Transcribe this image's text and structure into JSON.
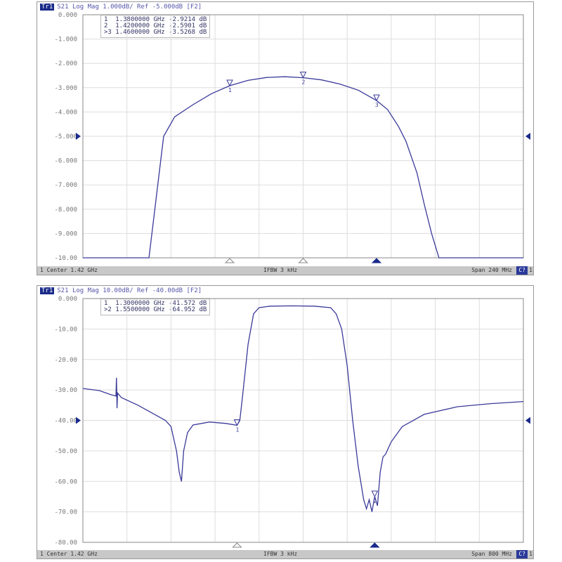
{
  "charts": [
    {
      "trace_label": "Tr1",
      "header": "S21 Log Mag 1.000dB/ Ref -5.000dB [F2]",
      "markers": [
        {
          "id": "1",
          "freq": "1.3800000 GHz",
          "value": "-2.9214 dB"
        },
        {
          "id": "2",
          "freq": "1.4200000 GHz",
          "value": "-2.5901 dB"
        },
        {
          "id": ">3",
          "freq": "1.4600000 GHz",
          "value": "-3.5268 dB"
        }
      ],
      "footer": {
        "left": "1  Center 1.42 GHz",
        "middle": "IFBW 3 kHz",
        "right": "Span 240 MHz",
        "badge": "C?",
        "end": "1"
      }
    },
    {
      "trace_label": "Tr1",
      "header": "S21 Log Mag 10.00dB/ Ref -40.00dB [F2]",
      "markers": [
        {
          "id": "1",
          "freq": "1.3000000 GHz",
          "value": "-41.572 dB"
        },
        {
          "id": ">2",
          "freq": "1.5500000 GHz",
          "value": "-64.952 dB"
        }
      ],
      "footer": {
        "left": "1  Center 1.42 GHz",
        "middle": "IFBW 3 kHz",
        "right": "Span 800 MHz",
        "badge": "C?",
        "end": "1"
      }
    }
  ],
  "chart_data": [
    {
      "type": "line",
      "xlim": [
        1.3,
        1.54
      ],
      "ylim": [
        -10,
        0
      ],
      "grid": true,
      "trace_color": "#3a3a9a",
      "yticks": [
        "0.000",
        "-1.000",
        "-2.000",
        "-3.000",
        "-4.000",
        "-5.000",
        "-6.000",
        "-7.000",
        "-8.000",
        "-9.000",
        "-10.00"
      ],
      "reference_level": -5,
      "marker_freqs": [
        1.38,
        1.42,
        1.46
      ],
      "active_marker": 3,
      "x": [
        1.3,
        1.336,
        1.34,
        1.344,
        1.35,
        1.36,
        1.37,
        1.38,
        1.39,
        1.4,
        1.41,
        1.42,
        1.43,
        1.44,
        1.45,
        1.46,
        1.466,
        1.472,
        1.476,
        1.482,
        1.486,
        1.49,
        1.494,
        1.54
      ],
      "y": [
        -10.5,
        -10.5,
        -7.5,
        -5.0,
        -4.2,
        -3.7,
        -3.25,
        -2.92,
        -2.7,
        -2.58,
        -2.55,
        -2.59,
        -2.68,
        -2.85,
        -3.1,
        -3.53,
        -3.9,
        -4.6,
        -5.2,
        -6.5,
        -7.8,
        -9.0,
        -10.5,
        -10.5
      ]
    },
    {
      "type": "line",
      "xlim": [
        1.02,
        1.82
      ],
      "ylim": [
        -80,
        0
      ],
      "grid": true,
      "trace_color": "#3a3a9a",
      "yticks": [
        "0.000",
        "-10.00",
        "-20.00",
        "-30.00",
        "-40.00",
        "-50.00",
        "-60.00",
        "-70.00",
        "-80.00"
      ],
      "reference_level": -40,
      "marker_freqs": [
        1.3,
        1.55
      ],
      "active_marker": 2,
      "x": [
        1.02,
        1.05,
        1.07,
        1.08,
        1.081,
        1.082,
        1.083,
        1.09,
        1.12,
        1.15,
        1.17,
        1.18,
        1.19,
        1.195,
        1.199,
        1.203,
        1.21,
        1.22,
        1.25,
        1.28,
        1.3,
        1.305,
        1.31,
        1.32,
        1.33,
        1.34,
        1.36,
        1.4,
        1.44,
        1.47,
        1.48,
        1.49,
        1.5,
        1.51,
        1.52,
        1.53,
        1.535,
        1.54,
        1.545,
        1.55,
        1.555,
        1.56,
        1.565,
        1.57,
        1.58,
        1.6,
        1.64,
        1.7,
        1.76,
        1.82
      ],
      "y": [
        -29.5,
        -30.2,
        -31.5,
        -32,
        -26,
        -36,
        -31,
        -32.5,
        -35,
        -38,
        -40,
        -42,
        -50,
        -57,
        -60,
        -50,
        -44,
        -41.5,
        -40.5,
        -41,
        -41.6,
        -40,
        -32,
        -15,
        -5,
        -3,
        -2.5,
        -2.4,
        -2.5,
        -3,
        -5,
        -10,
        -22,
        -40,
        -55,
        -66,
        -69,
        -66,
        -70,
        -65,
        -68,
        -57,
        -52,
        -51,
        -47,
        -42,
        -38,
        -35.5,
        -34.5,
        -33.8
      ]
    }
  ]
}
